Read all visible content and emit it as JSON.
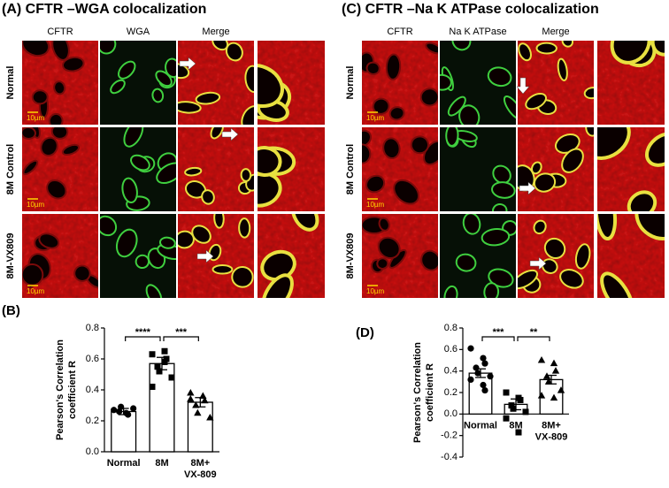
{
  "panel_a": {
    "title": "(A) CFTR –WGA colocalization",
    "columns": [
      "CFTR",
      "WGA",
      "Merge"
    ],
    "rows": [
      "Normal",
      "8M Control",
      "8M-VX809"
    ],
    "scale_bar": "10µm"
  },
  "panel_c": {
    "title": "(C) CFTR –Na K ATPase colocalization",
    "columns": [
      "CFTR",
      "Na K ATPase",
      "Merge"
    ],
    "rows": [
      "Normal",
      "8M Control",
      "8M-VX809"
    ],
    "scale_bar": "10µm"
  },
  "chart_data": [
    {
      "type": "bar",
      "label": "(B)",
      "ylabel": [
        "Pearson's Correlation",
        "coefficient R"
      ],
      "categories": [
        "Normal",
        "8M",
        "8M+ VX-809"
      ],
      "values": [
        0.26,
        0.57,
        0.32
      ],
      "errors": [
        0.02,
        0.04,
        0.03
      ],
      "points": [
        [
          0.27,
          0.25,
          0.24,
          0.26,
          0.29,
          0.28
        ],
        [
          0.63,
          0.65,
          0.6,
          0.55,
          0.52,
          0.48,
          0.42,
          0.58
        ],
        [
          0.38,
          0.36,
          0.33,
          0.3,
          0.25,
          0.22,
          0.34
        ]
      ],
      "markers": [
        "circle",
        "square",
        "triangle"
      ],
      "color": "#ffffff",
      "ylim": [
        0,
        0.8
      ],
      "yticks": [
        {
          "value": 0,
          "label": "0.0"
        },
        0.2,
        0.4,
        0.6,
        0.8
      ],
      "significance": [
        {
          "between": [
            "Normal",
            "8M"
          ],
          "label": "****"
        },
        {
          "between": [
            "8M",
            "8M+ VX-809"
          ],
          "label": "***"
        }
      ]
    },
    {
      "type": "bar",
      "label": "(D)",
      "ylabel": [
        "Pearson's Correlation",
        "coefficient R"
      ],
      "categories": [
        "Normal",
        "8M",
        "8M+ VX-809"
      ],
      "values": [
        0.38,
        0.09,
        0.32
      ],
      "errors": [
        0.04,
        0.05,
        0.04
      ],
      "points": [
        [
          0.61,
          0.52,
          0.47,
          0.43,
          0.38,
          0.35,
          0.32,
          0.27,
          0.22
        ],
        [
          0.2,
          0.15,
          0.13,
          0.08,
          0.05,
          0.02,
          -0.04,
          -0.17
        ],
        [
          0.5,
          0.47,
          0.4,
          0.35,
          0.3,
          0.22,
          0.17,
          0.15
        ]
      ],
      "markers": [
        "circle",
        "square",
        "triangle"
      ],
      "color": "#ffffff",
      "ylim": [
        -0.4,
        0.8
      ],
      "yticks": [
        -0.4,
        -0.2,
        {
          "value": 0,
          "label": "0.0"
        },
        0.2,
        0.4,
        0.6,
        0.8
      ],
      "significance": [
        {
          "between": [
            "Normal",
            "8M"
          ],
          "label": "***"
        },
        {
          "between": [
            "8M",
            "8M+ VX-809"
          ],
          "label": "**"
        }
      ]
    }
  ]
}
